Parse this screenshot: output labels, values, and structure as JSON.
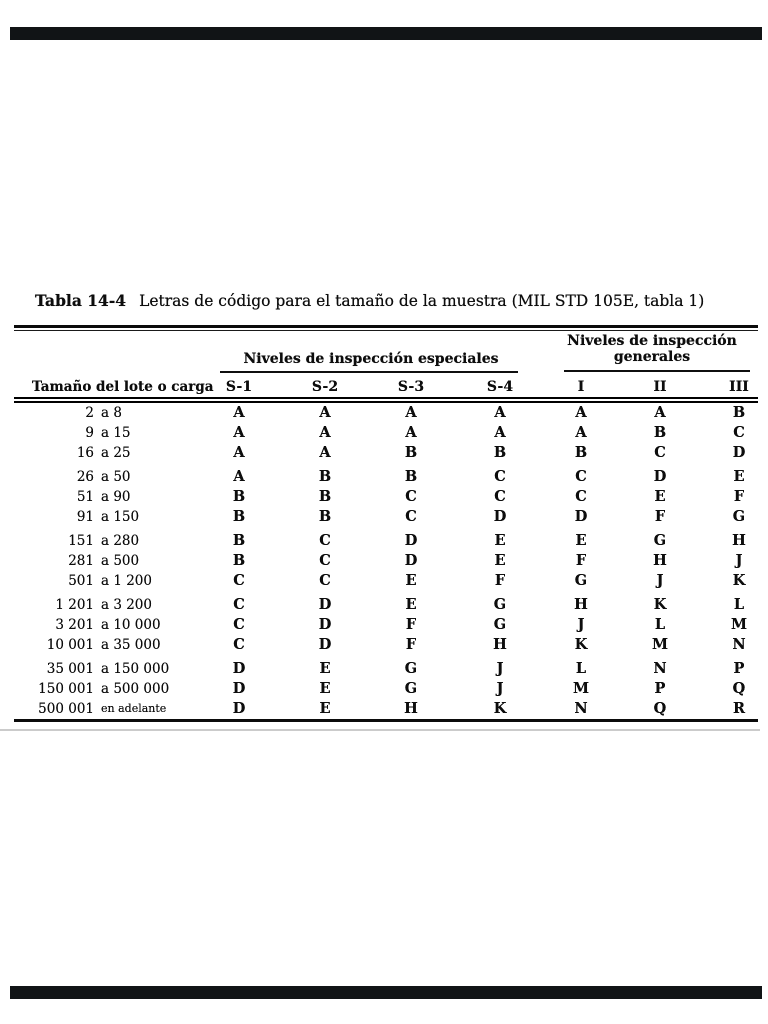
{
  "page": {
    "background": "#ffffff",
    "bar_color": "#111416",
    "faint_line_color": "#cbcbcb"
  },
  "table": {
    "title_label": "Tabla 14-4",
    "title_text": "Letras de código para el tamaño de la muestra (MIL STD 105E, tabla 1)",
    "group_headers": {
      "especiales": "Niveles de inspección especiales",
      "generales_line1": "Niveles de inspección",
      "generales_line2": "generales"
    },
    "row_header": "Tamaño del lote o carga",
    "columns": [
      "S-1",
      "S-2",
      "S-3",
      "S-4",
      "I",
      "II",
      "III"
    ],
    "rows": [
      {
        "lot_from": "2",
        "lot_sep": "a",
        "lot_to": "8",
        "codes": [
          "A",
          "A",
          "A",
          "A",
          "A",
          "A",
          "B"
        ]
      },
      {
        "lot_from": "9",
        "lot_sep": "a",
        "lot_to": "15",
        "codes": [
          "A",
          "A",
          "A",
          "A",
          "A",
          "B",
          "C"
        ]
      },
      {
        "lot_from": "16",
        "lot_sep": "a",
        "lot_to": "25",
        "codes": [
          "A",
          "A",
          "B",
          "B",
          "B",
          "C",
          "D"
        ]
      },
      {
        "lot_from": "26",
        "lot_sep": "a",
        "lot_to": "50",
        "codes": [
          "A",
          "B",
          "B",
          "C",
          "C",
          "D",
          "E"
        ]
      },
      {
        "lot_from": "51",
        "lot_sep": "a",
        "lot_to": "90",
        "codes": [
          "B",
          "B",
          "C",
          "C",
          "C",
          "E",
          "F"
        ]
      },
      {
        "lot_from": "91",
        "lot_sep": "a",
        "lot_to": "150",
        "codes": [
          "B",
          "B",
          "C",
          "D",
          "D",
          "F",
          "G"
        ]
      },
      {
        "lot_from": "151",
        "lot_sep": "a",
        "lot_to": "280",
        "codes": [
          "B",
          "C",
          "D",
          "E",
          "E",
          "G",
          "H"
        ]
      },
      {
        "lot_from": "281",
        "lot_sep": "a",
        "lot_to": "500",
        "codes": [
          "B",
          "C",
          "D",
          "E",
          "F",
          "H",
          "J"
        ]
      },
      {
        "lot_from": "501",
        "lot_sep": "a",
        "lot_to": "1 200",
        "codes": [
          "C",
          "C",
          "E",
          "F",
          "G",
          "J",
          "K"
        ]
      },
      {
        "lot_from": "1 201",
        "lot_sep": "a",
        "lot_to": "3 200",
        "codes": [
          "C",
          "D",
          "E",
          "G",
          "H",
          "K",
          "L"
        ]
      },
      {
        "lot_from": "3 201",
        "lot_sep": "a",
        "lot_to": "10 000",
        "codes": [
          "C",
          "D",
          "F",
          "G",
          "J",
          "L",
          "M"
        ]
      },
      {
        "lot_from": "10 001",
        "lot_sep": "a",
        "lot_to": "35 000",
        "codes": [
          "C",
          "D",
          "F",
          "H",
          "K",
          "M",
          "N"
        ]
      },
      {
        "lot_from": "35 001",
        "lot_sep": "a",
        "lot_to": "150 000",
        "codes": [
          "D",
          "E",
          "G",
          "J",
          "L",
          "N",
          "P"
        ]
      },
      {
        "lot_from": "150 001",
        "lot_sep": "a",
        "lot_to": "500 000",
        "codes": [
          "D",
          "E",
          "G",
          "J",
          "M",
          "P",
          "Q"
        ]
      },
      {
        "lot_from": "500 001",
        "lot_sep": "en adelante",
        "lot_to": "",
        "codes": [
          "D",
          "E",
          "H",
          "K",
          "N",
          "Q",
          "R"
        ]
      }
    ]
  }
}
